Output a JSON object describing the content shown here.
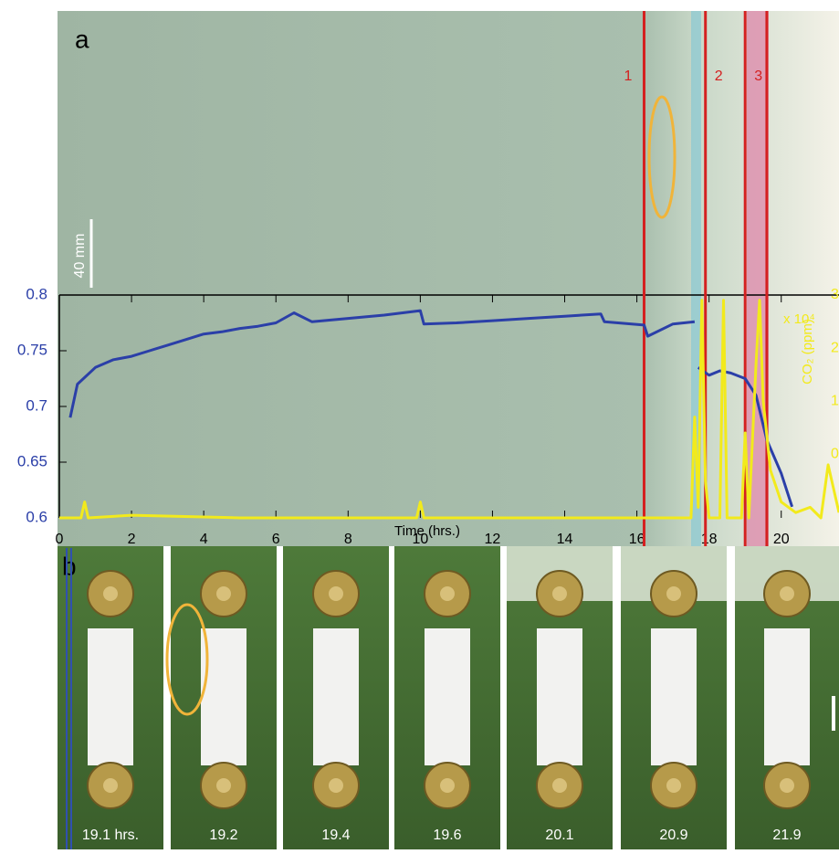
{
  "chart_data": {
    "type": "line",
    "panel_label": "a",
    "scale_label": "40 mm",
    "xlabel": "Time (hrs.)",
    "y2label": "CO₂ (ppm)",
    "y2_multiplier": "x 10⁴",
    "xlim": [
      0,
      21.6
    ],
    "xticks": [
      0,
      2,
      4,
      6,
      8,
      10,
      12,
      14,
      16,
      18,
      20
    ],
    "ylim": [
      0.6,
      0.8
    ],
    "yticks": [
      0.6,
      0.65,
      0.7,
      0.75,
      0.8
    ],
    "y2lim": [
      -1.2,
      3
    ],
    "y2ticks": [
      0,
      1,
      2,
      3
    ],
    "grid": false,
    "series": [
      {
        "color": "#2b3fa8",
        "x": [
          0.3,
          0.5,
          1,
          1.5,
          2,
          2.5,
          3,
          3.5,
          4,
          4.5,
          5,
          5.5,
          6,
          6.5,
          7,
          8,
          9,
          10,
          10.1,
          11,
          12,
          13,
          14,
          15,
          15.1,
          16.2,
          16.3,
          17,
          17.6,
          null,
          17.7,
          18,
          18.3,
          18.6,
          19,
          19.3,
          19.6,
          20,
          20.3
        ],
        "values": [
          0.69,
          0.72,
          0.735,
          0.742,
          0.745,
          0.75,
          0.755,
          0.76,
          0.765,
          0.767,
          0.77,
          0.772,
          0.775,
          0.784,
          0.776,
          0.779,
          0.782,
          0.786,
          0.774,
          0.775,
          0.777,
          0.779,
          0.781,
          0.783,
          0.776,
          0.773,
          0.763,
          0.774,
          0.776,
          null,
          0.735,
          0.728,
          0.732,
          0.73,
          0.725,
          0.71,
          0.67,
          0.64,
          0.61
        ]
      },
      {
        "color": "#f2ea1c",
        "axis": "y2",
        "x": [
          0,
          0.6,
          0.7,
          0.8,
          2,
          5,
          9.9,
          10,
          10.1,
          15,
          17.5,
          17.6,
          17.7,
          17.8,
          17.9,
          18.0,
          18.3,
          18.4,
          18.5,
          18.9,
          19.0,
          19.1,
          19.3,
          19.4,
          19.5,
          19.7,
          20,
          20.4,
          20.8,
          21.1,
          21.3,
          21.6
        ],
        "values": [
          -1.2,
          -1.2,
          -0.9,
          -1.2,
          -1.15,
          -1.2,
          -1.2,
          -0.9,
          -1.2,
          -1.2,
          -1.2,
          0.7,
          -1.0,
          2.9,
          -0.5,
          -1.2,
          -1.2,
          2.9,
          -1.2,
          -1.2,
          0.4,
          -1.2,
          1.7,
          2.9,
          1.0,
          -0.3,
          -0.9,
          -1.1,
          -1.0,
          -1.2,
          -0.2,
          -1.1
        ]
      }
    ],
    "markers": [
      {
        "label": "1",
        "x": 16.2
      },
      {
        "label": "2",
        "x": 17.9
      },
      {
        "label": "3",
        "x": 19.0
      },
      {
        "x": 19.6
      }
    ]
  },
  "panel_b": {
    "panel_label": "b",
    "labels": [
      "19.1 hrs.",
      "19.2",
      "19.4",
      "19.6",
      "20.1",
      "20.9",
      "21.9"
    ]
  }
}
